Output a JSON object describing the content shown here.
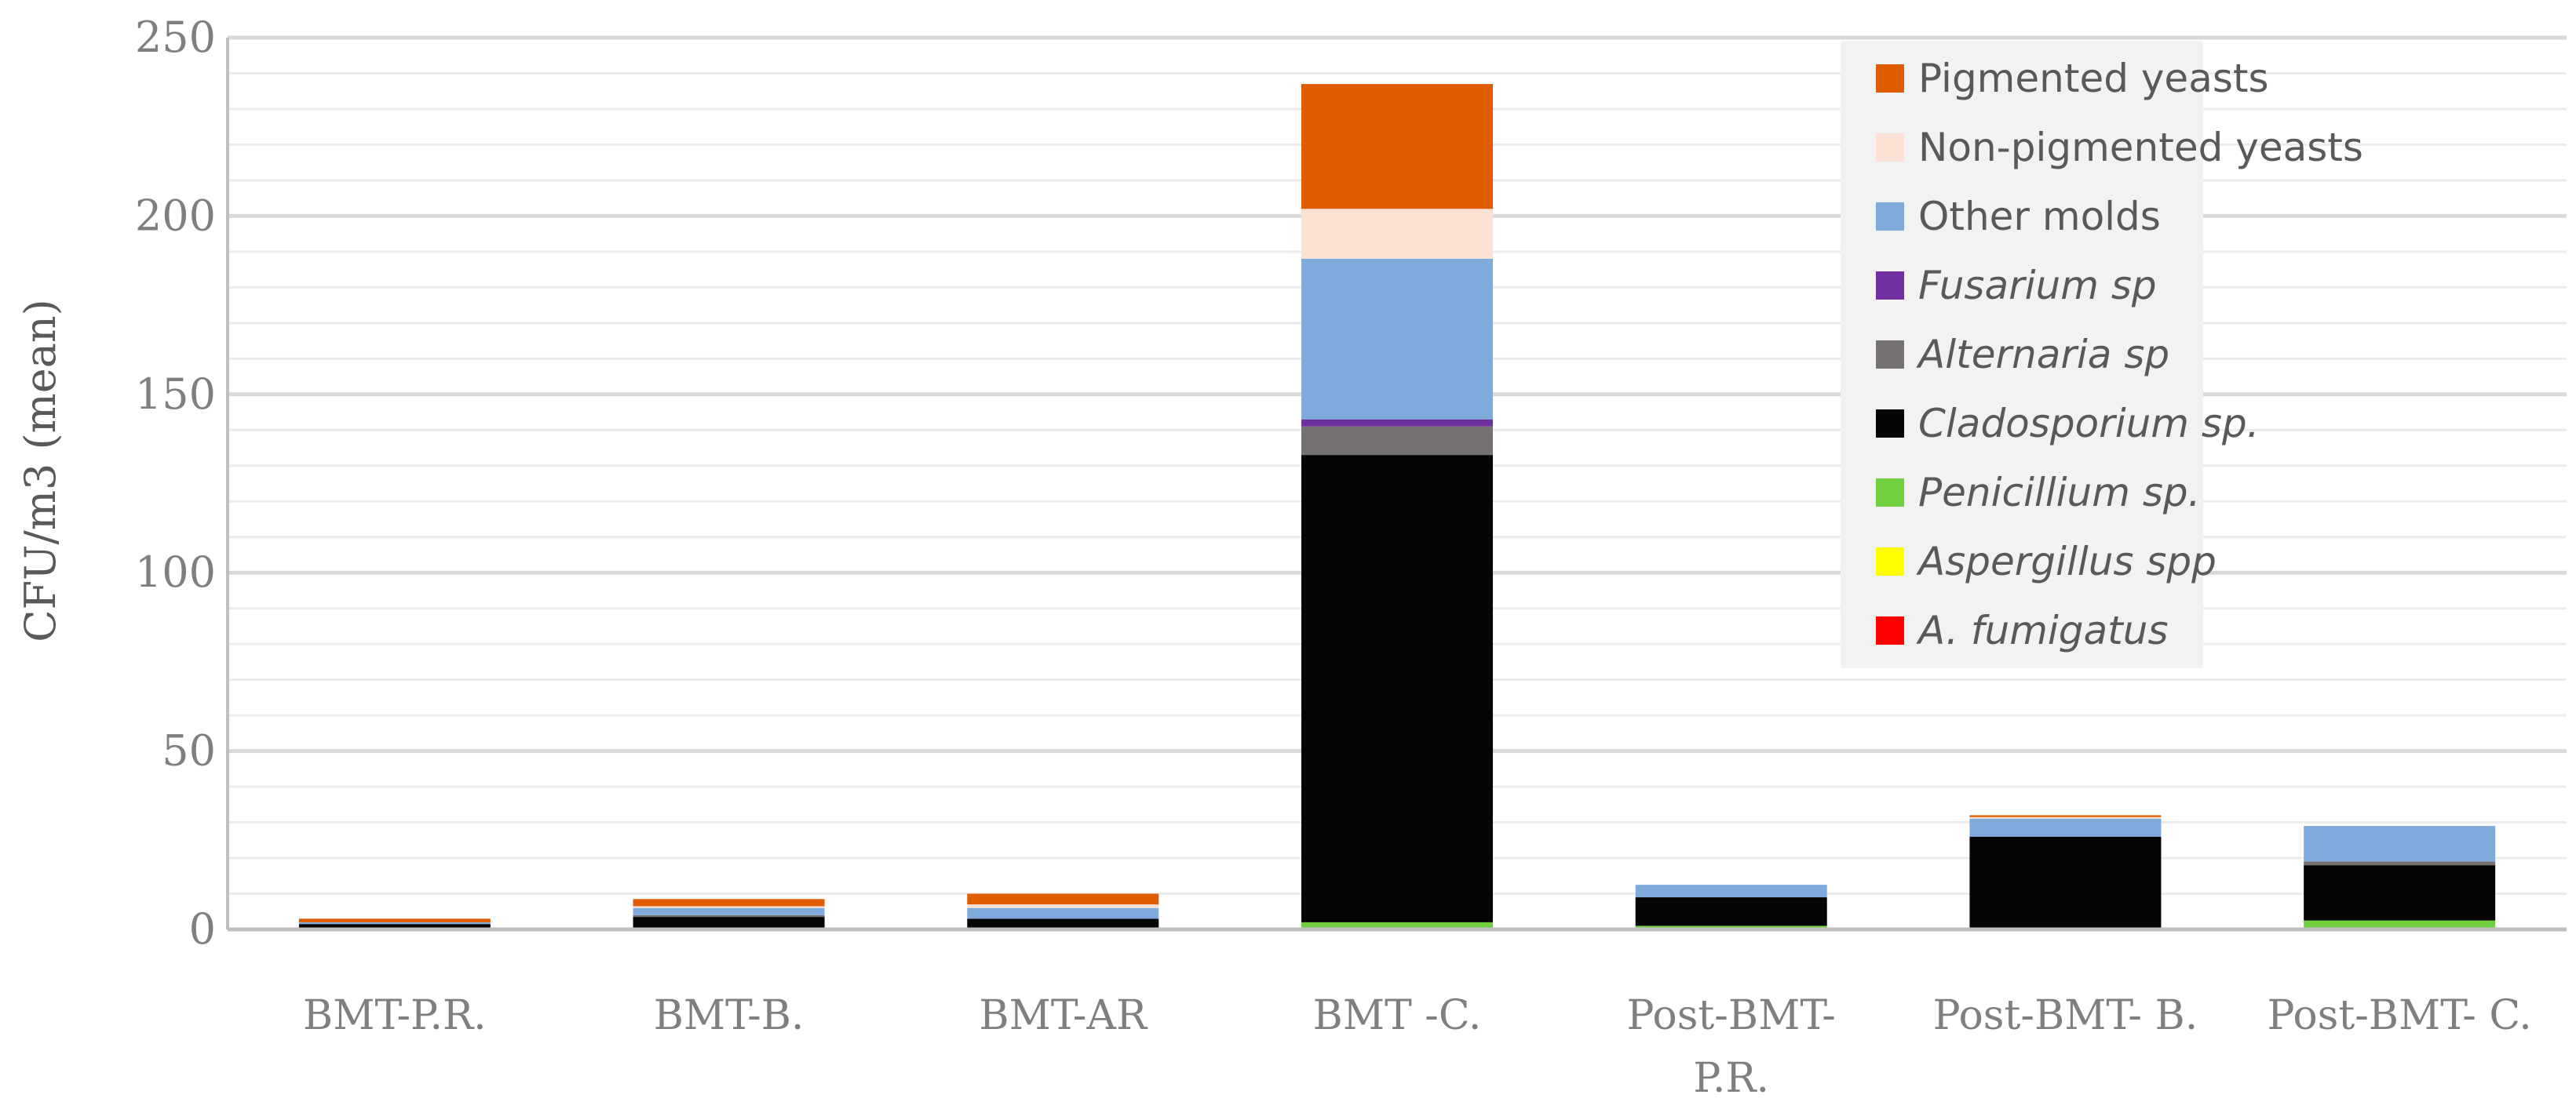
{
  "chart_data": {
    "type": "bar",
    "stacked": true,
    "ylabel": "CFU/m3 (mean)",
    "ylim": [
      0,
      250
    ],
    "yticks": [
      0,
      50,
      100,
      150,
      200,
      250
    ],
    "grid": true,
    "legend_position": "top-right",
    "categories": [
      [
        "BMT-P.R."
      ],
      [
        "BMT-B."
      ],
      [
        "BMT-AR"
      ],
      [
        "BMT -C."
      ],
      [
        "Post-BMT-",
        "P.R."
      ],
      [
        "Post-BMT- B."
      ],
      [
        "Post-BMT- C."
      ]
    ],
    "series": [
      {
        "name": "A. fumigatus",
        "italic": true,
        "color": "#ff0000",
        "values": [
          0,
          0,
          0,
          0,
          0,
          0,
          0
        ]
      },
      {
        "name": "Aspergillus spp",
        "italic": true,
        "color": "#ffff00",
        "values": [
          0,
          0,
          0,
          0,
          0,
          0,
          0
        ]
      },
      {
        "name": "Penicillium sp.",
        "italic": true,
        "color": "#70d040",
        "values": [
          0,
          0,
          0,
          2,
          1,
          0.5,
          2.5
        ]
      },
      {
        "name": "Cladosporium sp.",
        "italic": true,
        "color": "#050505",
        "values": [
          1.5,
          3.5,
          3,
          131,
          8,
          25.5,
          15.5
        ]
      },
      {
        "name": "Alternaria sp",
        "italic": true,
        "color": "#767171",
        "values": [
          0,
          0.5,
          0,
          8,
          0,
          0,
          1
        ]
      },
      {
        "name": "Fusarium sp",
        "italic": true,
        "color": "#7030a0",
        "values": [
          0,
          0,
          0,
          2,
          0,
          0,
          0
        ]
      },
      {
        "name": "Other molds",
        "italic": false,
        "color": "#7faadc",
        "values": [
          0.5,
          2,
          3,
          45,
          3.5,
          5,
          10
        ]
      },
      {
        "name": "Non-pigmented yeasts",
        "italic": false,
        "color": "#fbe2d5",
        "values": [
          0,
          0.5,
          1,
          14,
          0,
          0.5,
          0
        ]
      },
      {
        "name": "Pigmented yeasts",
        "italic": false,
        "color": "#e05c00",
        "values": [
          1,
          2,
          3,
          35,
          0,
          0.5,
          0
        ]
      }
    ]
  },
  "colors": {
    "grid_major": "#d9d9d9",
    "grid_minor": "#ececec",
    "axis": "#bfbfbf",
    "text": "#7f7f7f"
  }
}
